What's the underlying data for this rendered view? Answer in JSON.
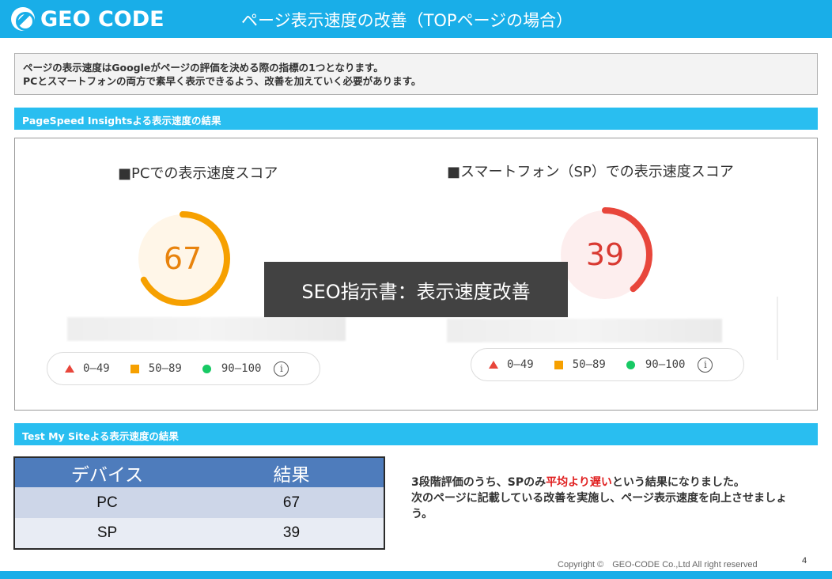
{
  "header": {
    "logo_text": "GEO CODE",
    "title": "ページ表示速度の改善（TOPページの場合）"
  },
  "intro": {
    "line1": "ページの表示速度はGoogleがページの評価を決める際の指標の1つとなります。",
    "line2": "PCとスマートフォンの両方で素早く表示できるよう、改善を加えていく必要があります。"
  },
  "pagespeed": {
    "heading": "PageSpeed Insightsよる表示速度の結果",
    "pc": {
      "title": "■PCでの表示速度スコア",
      "score": "67",
      "score_fraction": 0.67,
      "color": "#f6a000",
      "bg": "#fff6e8"
    },
    "sp": {
      "title": "■スマートフォン（SP）での表示速度スコア",
      "score": "39",
      "score_fraction": 0.39,
      "color": "#e8463b",
      "bg": "#fdeeee"
    },
    "legend": {
      "fail": "0–49",
      "average": "50–89",
      "pass": "90–100"
    }
  },
  "overlay_text": "SEO指示書：表示速度改善",
  "testmysite": {
    "heading": "Test My Siteよる表示速度の結果",
    "columns": [
      "デバイス",
      "結果"
    ],
    "rows": [
      [
        "PC",
        "67"
      ],
      [
        "SP",
        "39"
      ]
    ]
  },
  "summary": {
    "part1": "3段階評価のうち、SPのみ",
    "highlight": "平均より遅い",
    "part2": "という結果になりました。",
    "line2": "次のページに記載している改善を実施し、ページ表示速度を向上させましょう。"
  },
  "footer": {
    "copyright": "Copyright ©　GEO-CODE Co.,Ltd All right reserved",
    "page_number": "4"
  },
  "colors": {
    "brand": "#19aee8",
    "section_bar": "#29bef0",
    "table_header": "#4e7cbc",
    "highlight": "#e02020"
  }
}
